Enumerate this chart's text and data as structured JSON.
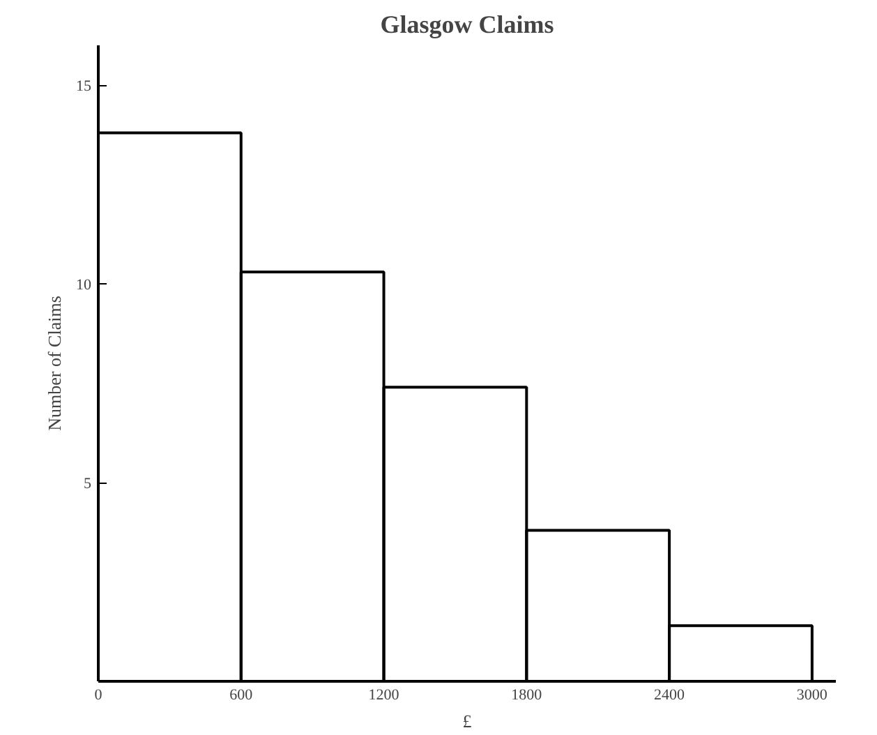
{
  "chart_data": {
    "type": "histogram",
    "title": "Glasgow Claims",
    "xlabel": "£",
    "ylabel": "Number of Claims",
    "bins": [
      0,
      600,
      1200,
      1800,
      2400,
      3000
    ],
    "values": [
      13.8,
      10.3,
      7.4,
      3.8,
      1.4
    ],
    "color": "#000000",
    "xlim": [
      0,
      3100
    ],
    "ylim": [
      0,
      16
    ],
    "xticks": [
      0,
      600,
      1200,
      1800,
      2400,
      3000
    ],
    "yticks": [
      5,
      10,
      15
    ],
    "grid": false
  }
}
